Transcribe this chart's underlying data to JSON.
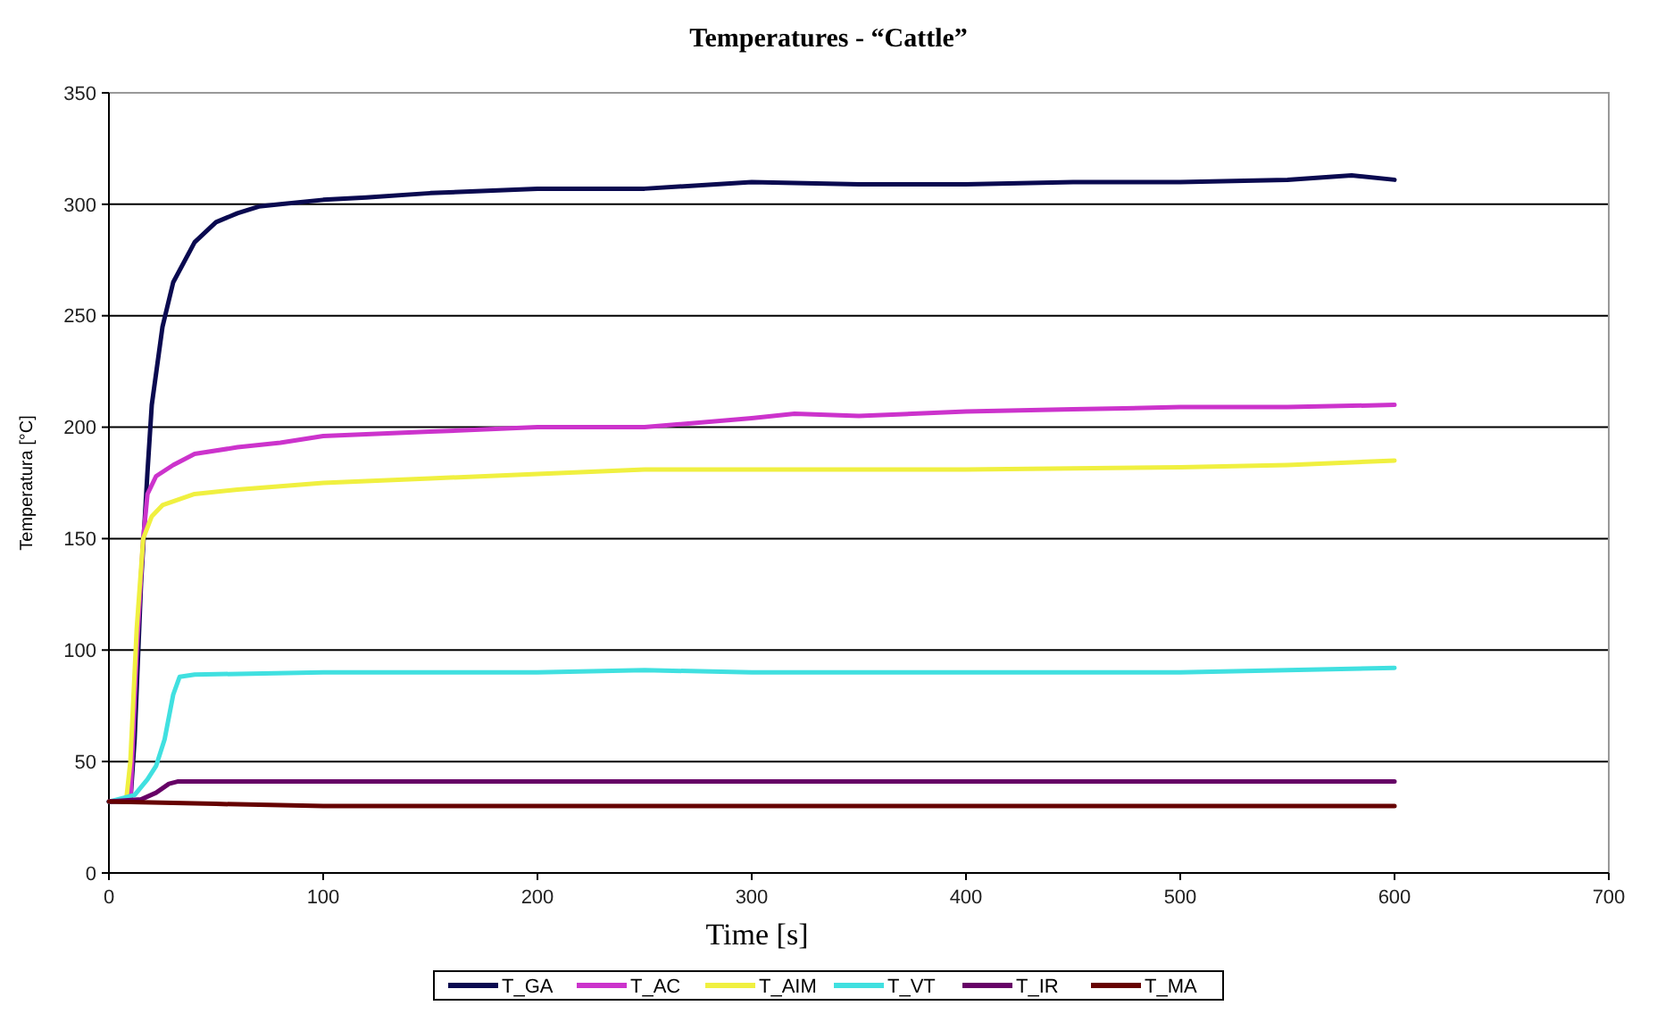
{
  "chart_data": {
    "type": "line",
    "title": "Temperatures - “Cattle”",
    "xlabel": "Time  [s]",
    "ylabel": "Temperatura [°C]",
    "xlim": [
      0,
      700
    ],
    "xticks": [
      0,
      100,
      200,
      300,
      400,
      500,
      600,
      700
    ],
    "ylim": [
      0,
      350
    ],
    "yticks": [
      0,
      50,
      100,
      150,
      200,
      250,
      300,
      350
    ],
    "grid": "y",
    "legend": "bottom",
    "marker": "none",
    "line_style": "solid",
    "series": [
      {
        "name": "T_GA",
        "color": "#0a0a50",
        "x": [
          0,
          10,
          12,
          15,
          18,
          20,
          25,
          30,
          40,
          50,
          60,
          70,
          80,
          100,
          120,
          150,
          200,
          250,
          300,
          350,
          400,
          450,
          500,
          550,
          580,
          600
        ],
        "values": [
          32,
          32,
          60,
          130,
          180,
          210,
          245,
          265,
          283,
          292,
          296,
          299,
          300,
          302,
          303,
          305,
          307,
          307,
          310,
          309,
          309,
          310,
          310,
          311,
          313,
          311
        ]
      },
      {
        "name": "T_AC",
        "color": "#cc33cc",
        "x": [
          10,
          13,
          16,
          18,
          22,
          30,
          40,
          60,
          80,
          100,
          150,
          200,
          250,
          300,
          320,
          350,
          400,
          450,
          500,
          550,
          600
        ],
        "values": [
          32,
          100,
          150,
          170,
          178,
          183,
          188,
          191,
          193,
          196,
          198,
          200,
          200,
          204,
          206,
          205,
          207,
          208,
          209,
          209,
          210
        ]
      },
      {
        "name": "T_AIM",
        "color": "#f0f040",
        "x": [
          8,
          10,
          13,
          16,
          20,
          25,
          40,
          60,
          100,
          150,
          200,
          250,
          300,
          400,
          500,
          550,
          600
        ],
        "values": [
          32,
          50,
          110,
          150,
          160,
          165,
          170,
          172,
          175,
          177,
          179,
          181,
          181,
          181,
          182,
          183,
          185
        ]
      },
      {
        "name": "T_VT",
        "color": "#40e0e0",
        "x": [
          0,
          12,
          18,
          22,
          26,
          30,
          33,
          40,
          100,
          200,
          250,
          300,
          400,
          500,
          600
        ],
        "values": [
          32,
          35,
          42,
          48,
          60,
          80,
          88,
          89,
          90,
          90,
          91,
          90,
          90,
          90,
          92
        ]
      },
      {
        "name": "T_IR",
        "color": "#660066",
        "x": [
          0,
          15,
          22,
          28,
          32,
          100,
          200,
          300,
          400,
          500,
          600
        ],
        "values": [
          32,
          33,
          36,
          40,
          41,
          41,
          41,
          41,
          41,
          41,
          41
        ]
      },
      {
        "name": "T_MA",
        "color": "#660000",
        "x": [
          0,
          50,
          100,
          200,
          300,
          400,
          500,
          600
        ],
        "values": [
          32,
          31,
          30,
          30,
          30,
          30,
          30,
          30
        ]
      }
    ]
  }
}
